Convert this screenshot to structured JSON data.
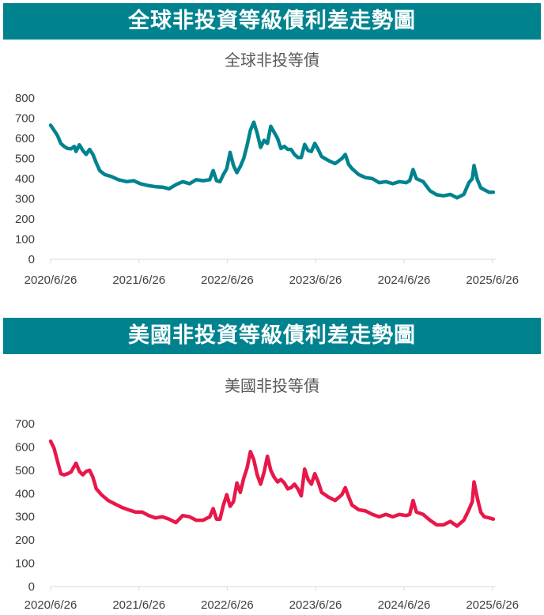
{
  "banners": {
    "global": "全球非投資等級債利差走勢圖",
    "us": "美國非投資等級債利差走勢圖"
  },
  "chart_data": [
    {
      "type": "line",
      "title": "全球非投等債",
      "xlabel": "",
      "ylabel": "",
      "x_ticks": [
        "2020/6/26",
        "2021/6/26",
        "2022/6/26",
        "2023/6/26",
        "2024/6/26",
        "2025/6/26"
      ],
      "y_ticks": [
        "0",
        "100",
        "200",
        "300",
        "400",
        "500",
        "600",
        "700",
        "800"
      ],
      "ylim": [
        0,
        800
      ],
      "xlim": [
        "2020/6/26",
        "2025/7/10"
      ],
      "grid": false,
      "color": "#00838F",
      "series": [
        {
          "points": [
            [
              "2020-06-26",
              665
            ],
            [
              "2020-07-10",
              640
            ],
            [
              "2020-07-24",
              615
            ],
            [
              "2020-08-07",
              575
            ],
            [
              "2020-08-21",
              560
            ],
            [
              "2020-09-04",
              550
            ],
            [
              "2020-09-18",
              548
            ],
            [
              "2020-10-02",
              560
            ],
            [
              "2020-10-09",
              535
            ],
            [
              "2020-10-23",
              568
            ],
            [
              "2020-11-06",
              540
            ],
            [
              "2020-11-20",
              520
            ],
            [
              "2020-12-04",
              545
            ],
            [
              "2020-12-18",
              520
            ],
            [
              "2021-01-01",
              478
            ],
            [
              "2021-01-15",
              440
            ],
            [
              "2021-02-05",
              420
            ],
            [
              "2021-03-05",
              410
            ],
            [
              "2021-04-02",
              395
            ],
            [
              "2021-05-07",
              385
            ],
            [
              "2021-06-04",
              390
            ],
            [
              "2021-07-02",
              375
            ],
            [
              "2021-08-06",
              365
            ],
            [
              "2021-09-03",
              360
            ],
            [
              "2021-10-01",
              358
            ],
            [
              "2021-10-29",
              350
            ],
            [
              "2021-11-26",
              370
            ],
            [
              "2021-12-24",
              385
            ],
            [
              "2022-01-21",
              375
            ],
            [
              "2022-02-18",
              395
            ],
            [
              "2022-03-18",
              390
            ],
            [
              "2022-04-15",
              395
            ],
            [
              "2022-04-29",
              440
            ],
            [
              "2022-05-13",
              390
            ],
            [
              "2022-05-27",
              385
            ],
            [
              "2022-06-10",
              420
            ],
            [
              "2022-06-24",
              450
            ],
            [
              "2022-07-08",
              530
            ],
            [
              "2022-07-22",
              465
            ],
            [
              "2022-08-05",
              430
            ],
            [
              "2022-08-19",
              460
            ],
            [
              "2022-09-02",
              500
            ],
            [
              "2022-09-16",
              565
            ],
            [
              "2022-09-30",
              640
            ],
            [
              "2022-10-14",
              680
            ],
            [
              "2022-10-28",
              625
            ],
            [
              "2022-11-11",
              555
            ],
            [
              "2022-11-25",
              590
            ],
            [
              "2022-12-09",
              575
            ],
            [
              "2022-12-23",
              660
            ],
            [
              "2023-01-06",
              630
            ],
            [
              "2023-01-20",
              600
            ],
            [
              "2023-02-03",
              550
            ],
            [
              "2023-02-17",
              560
            ],
            [
              "2023-03-03",
              545
            ],
            [
              "2023-03-17",
              545
            ],
            [
              "2023-03-31",
              520
            ],
            [
              "2023-04-14",
              505
            ],
            [
              "2023-04-28",
              505
            ],
            [
              "2023-05-12",
              570
            ],
            [
              "2023-05-26",
              540
            ],
            [
              "2023-06-09",
              535
            ],
            [
              "2023-06-23",
              575
            ],
            [
              "2023-07-07",
              545
            ],
            [
              "2023-07-21",
              510
            ],
            [
              "2023-08-04",
              500
            ],
            [
              "2023-08-18",
              490
            ],
            [
              "2023-09-15",
              475
            ],
            [
              "2023-10-13",
              500
            ],
            [
              "2023-10-27",
              520
            ],
            [
              "2023-11-10",
              470
            ],
            [
              "2023-11-24",
              450
            ],
            [
              "2023-12-22",
              420
            ],
            [
              "2024-01-19",
              405
            ],
            [
              "2024-02-16",
              400
            ],
            [
              "2024-03-15",
              380
            ],
            [
              "2024-04-12",
              385
            ],
            [
              "2024-05-10",
              375
            ],
            [
              "2024-06-07",
              385
            ],
            [
              "2024-07-05",
              380
            ],
            [
              "2024-07-19",
              390
            ],
            [
              "2024-08-02",
              445
            ],
            [
              "2024-08-16",
              400
            ],
            [
              "2024-09-13",
              385
            ],
            [
              "2024-10-11",
              340
            ],
            [
              "2024-11-08",
              320
            ],
            [
              "2024-12-06",
              315
            ],
            [
              "2025-01-03",
              322
            ],
            [
              "2025-01-31",
              305
            ],
            [
              "2025-02-28",
              322
            ],
            [
              "2025-03-21",
              380
            ],
            [
              "2025-04-04",
              400
            ],
            [
              "2025-04-11",
              465
            ],
            [
              "2025-04-25",
              395
            ],
            [
              "2025-05-09",
              355
            ],
            [
              "2025-05-23",
              345
            ],
            [
              "2025-06-13",
              332
            ],
            [
              "2025-06-30",
              333
            ]
          ]
        }
      ]
    },
    {
      "type": "line",
      "title": "美國非投等債",
      "xlabel": "",
      "ylabel": "",
      "x_ticks": [
        "2020/6/26",
        "2021/6/26",
        "2022/6/26",
        "2023/6/26",
        "2024/6/26",
        "2025/6/26"
      ],
      "y_ticks": [
        "0",
        "100",
        "200",
        "300",
        "400",
        "500",
        "600",
        "700"
      ],
      "ylim": [
        0,
        700
      ],
      "xlim": [
        "2020/6/26",
        "2025/7/10"
      ],
      "grid": false,
      "color": "#E8174A",
      "series": [
        {
          "points": [
            [
              "2020-06-26",
              625
            ],
            [
              "2020-07-10",
              595
            ],
            [
              "2020-07-24",
              540
            ],
            [
              "2020-08-07",
              485
            ],
            [
              "2020-08-21",
              480
            ],
            [
              "2020-09-04",
              485
            ],
            [
              "2020-09-18",
              492
            ],
            [
              "2020-10-09",
              530
            ],
            [
              "2020-10-23",
              495
            ],
            [
              "2020-11-06",
              480
            ],
            [
              "2020-11-20",
              495
            ],
            [
              "2020-12-04",
              500
            ],
            [
              "2020-12-18",
              470
            ],
            [
              "2021-01-01",
              420
            ],
            [
              "2021-01-22",
              395
            ],
            [
              "2021-02-19",
              370
            ],
            [
              "2021-03-19",
              355
            ],
            [
              "2021-04-16",
              340
            ],
            [
              "2021-05-14",
              330
            ],
            [
              "2021-06-11",
              320
            ],
            [
              "2021-07-09",
              320
            ],
            [
              "2021-08-06",
              305
            ],
            [
              "2021-09-03",
              295
            ],
            [
              "2021-10-01",
              300
            ],
            [
              "2021-10-29",
              290
            ],
            [
              "2021-11-26",
              275
            ],
            [
              "2021-12-24",
              305
            ],
            [
              "2022-01-21",
              300
            ],
            [
              "2022-02-18",
              285
            ],
            [
              "2022-03-18",
              285
            ],
            [
              "2022-04-15",
              300
            ],
            [
              "2022-04-29",
              335
            ],
            [
              "2022-05-13",
              290
            ],
            [
              "2022-05-27",
              290
            ],
            [
              "2022-06-10",
              350
            ],
            [
              "2022-06-24",
              395
            ],
            [
              "2022-07-08",
              345
            ],
            [
              "2022-07-22",
              365
            ],
            [
              "2022-08-05",
              445
            ],
            [
              "2022-08-19",
              405
            ],
            [
              "2022-09-02",
              465
            ],
            [
              "2022-09-16",
              510
            ],
            [
              "2022-09-30",
              580
            ],
            [
              "2022-10-14",
              545
            ],
            [
              "2022-10-28",
              480
            ],
            [
              "2022-11-11",
              440
            ],
            [
              "2022-11-25",
              490
            ],
            [
              "2022-12-09",
              560
            ],
            [
              "2022-12-23",
              500
            ],
            [
              "2023-01-06",
              470
            ],
            [
              "2023-01-20",
              450
            ],
            [
              "2023-02-03",
              460
            ],
            [
              "2023-02-17",
              445
            ],
            [
              "2023-03-03",
              420
            ],
            [
              "2023-03-17",
              425
            ],
            [
              "2023-03-31",
              440
            ],
            [
              "2023-04-14",
              420
            ],
            [
              "2023-04-28",
              390
            ],
            [
              "2023-05-12",
              505
            ],
            [
              "2023-05-26",
              460
            ],
            [
              "2023-06-09",
              440
            ],
            [
              "2023-06-23",
              485
            ],
            [
              "2023-07-07",
              450
            ],
            [
              "2023-07-21",
              405
            ],
            [
              "2023-08-04",
              395
            ],
            [
              "2023-08-18",
              385
            ],
            [
              "2023-09-15",
              370
            ],
            [
              "2023-10-13",
              395
            ],
            [
              "2023-10-27",
              425
            ],
            [
              "2023-11-10",
              385
            ],
            [
              "2023-11-24",
              350
            ],
            [
              "2023-12-22",
              330
            ],
            [
              "2024-01-19",
              325
            ],
            [
              "2024-02-16",
              310
            ],
            [
              "2024-03-15",
              300
            ],
            [
              "2024-04-12",
              310
            ],
            [
              "2024-05-10",
              300
            ],
            [
              "2024-06-07",
              310
            ],
            [
              "2024-07-05",
              305
            ],
            [
              "2024-07-19",
              310
            ],
            [
              "2024-08-02",
              370
            ],
            [
              "2024-08-16",
              320
            ],
            [
              "2024-09-13",
              310
            ],
            [
              "2024-10-11",
              285
            ],
            [
              "2024-11-08",
              265
            ],
            [
              "2024-12-06",
              265
            ],
            [
              "2025-01-03",
              280
            ],
            [
              "2025-01-31",
              260
            ],
            [
              "2025-02-28",
              285
            ],
            [
              "2025-03-21",
              330
            ],
            [
              "2025-04-04",
              365
            ],
            [
              "2025-04-11",
              450
            ],
            [
              "2025-04-25",
              380
            ],
            [
              "2025-05-09",
              320
            ],
            [
              "2025-05-23",
              300
            ],
            [
              "2025-06-13",
              295
            ],
            [
              "2025-06-30",
              290
            ]
          ]
        }
      ]
    }
  ]
}
